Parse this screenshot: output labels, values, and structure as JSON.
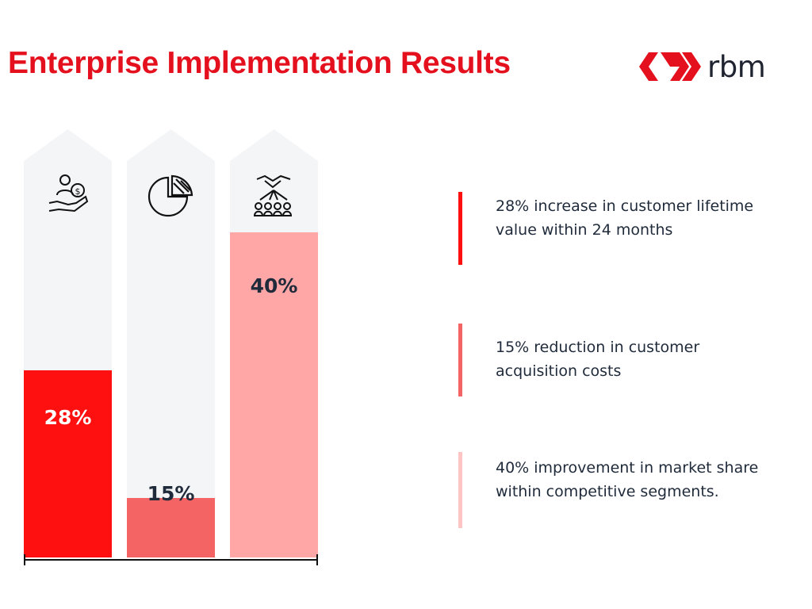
{
  "title": "Enterprise Implementation Results",
  "logo": {
    "text": "rbm"
  },
  "colors": {
    "accent": "#e5101d",
    "bar1": "#ff1010",
    "bar2": "#f56465",
    "bar3": "#ffa7a7",
    "track": "#f4f5f7",
    "text_dark": "#1f2a3a"
  },
  "chart_data": {
    "type": "bar",
    "categories": [
      "customer-lifetime-value",
      "customer-acquisition-costs",
      "market-share"
    ],
    "values": [
      28,
      15,
      40
    ],
    "value_labels": [
      "28%",
      "15%",
      "40%"
    ],
    "icons": [
      "hand-money-icon",
      "pie-chart-icon",
      "handshake-audience-icon"
    ],
    "ylim": [
      0,
      100
    ],
    "grid": false,
    "title": "",
    "xlabel": "",
    "ylabel": ""
  },
  "descriptions": [
    {
      "text": "28% increase in customer lifetime value within 24 months",
      "color": "#ff1010"
    },
    {
      "text": "15% reduction in customer acquisition costs",
      "color": "#f56465"
    },
    {
      "text": "40% improvement in market share within competitive segments.",
      "color": "#ffc4c4"
    }
  ]
}
